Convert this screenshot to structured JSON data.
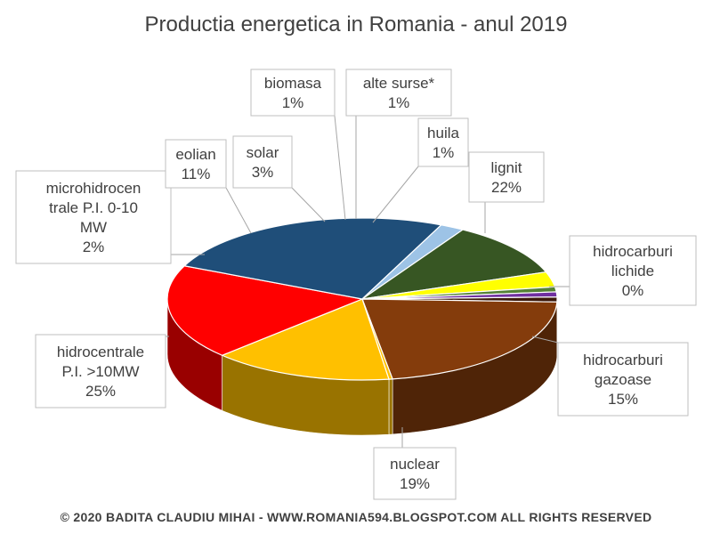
{
  "chart_data": {
    "type": "pie",
    "title": "Productia energetica in Romania - anul 2019",
    "footer": "© 2020 BADITA CLAUDIU MIHAI - WWW.ROMANIA594.BLOGSPOT.COM ALL RIGHTS RESERVED",
    "style": "3d",
    "slices": [
      {
        "label": "huila",
        "value_label": "1%",
        "value": 1,
        "color": "#3D1A0C"
      },
      {
        "label": "lignit",
        "value_label": "22%",
        "value": 22,
        "color": "#843C0C"
      },
      {
        "label": "hidrocarburi lichide",
        "value_label": "0%",
        "value": 0.3,
        "color": "#FFC000"
      },
      {
        "label": "hidrocarburi gazoase",
        "value_label": "15%",
        "value": 15,
        "color": "#FFC000"
      },
      {
        "label": "nuclear",
        "value_label": "19%",
        "value": 19,
        "color": "#FF0000"
      },
      {
        "label": "hidrocentrale P.I. >10MW",
        "value_label": "25%",
        "value": 25,
        "color": "#1F4E79"
      },
      {
        "label": "microhidrocentrale P.I.  0-10 MW",
        "value_label": "2%",
        "value": 2,
        "color": "#9DC3E6"
      },
      {
        "label": "eolian",
        "value_label": "11%",
        "value": 11,
        "color": "#375623"
      },
      {
        "label": "solar",
        "value_label": "3%",
        "value": 3,
        "color": "#FFFF00"
      },
      {
        "label": "biomasa",
        "value_label": "1%",
        "value": 1,
        "color": "#548235"
      },
      {
        "label": "alte surse*",
        "value_label": "1%",
        "value": 1,
        "color": "#7030A0"
      }
    ]
  }
}
